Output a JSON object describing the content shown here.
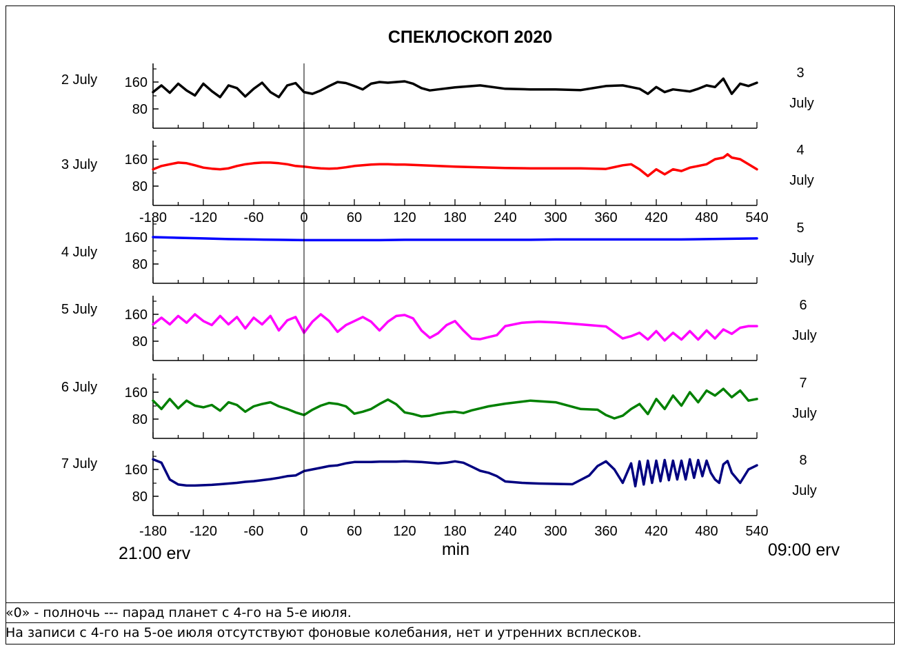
{
  "chart_data": {
    "type": "line",
    "title": "СПЕКЛОСКОП   2020",
    "xlabel": "min",
    "xlim": [
      -180,
      540
    ],
    "x_ticks": [
      "-180",
      "-120",
      "-60",
      "0",
      "60",
      "120",
      "180",
      "240",
      "300",
      "360",
      "420",
      "480",
      "540"
    ],
    "y_ticks": [
      "160",
      "80"
    ],
    "ylim": [
      70,
      200
    ],
    "start_label": "21:00 erv",
    "end_label": "09:00 erv",
    "vertical_marker_x": 0,
    "panels": [
      {
        "label": "2 July",
        "end_day": "3",
        "end_month": "July",
        "color": "#000000",
        "x": [
          -180,
          -170,
          -160,
          -150,
          -140,
          -130,
          -120,
          -110,
          -100,
          -90,
          -80,
          -70,
          -60,
          -50,
          -40,
          -30,
          -20,
          -10,
          0,
          10,
          20,
          30,
          40,
          50,
          60,
          70,
          80,
          90,
          100,
          110,
          120,
          130,
          140,
          150,
          160,
          180,
          210,
          240,
          270,
          300,
          330,
          360,
          380,
          400,
          410,
          420,
          430,
          440,
          450,
          460,
          470,
          480,
          490,
          500,
          510,
          520,
          530,
          540
        ],
        "y": [
          130,
          150,
          128,
          155,
          135,
          120,
          155,
          133,
          115,
          150,
          142,
          117,
          140,
          158,
          130,
          115,
          150,
          157,
          130,
          125,
          135,
          148,
          160,
          157,
          148,
          138,
          155,
          160,
          158,
          160,
          162,
          155,
          142,
          135,
          138,
          144,
          150,
          140,
          138,
          138,
          136,
          148,
          150,
          140,
          125,
          145,
          130,
          138,
          135,
          132,
          140,
          150,
          145,
          170,
          125,
          155,
          148,
          158
        ]
      },
      {
        "label": "3 July",
        "end_day": "4",
        "end_month": "July",
        "color": "#ff0000",
        "x": [
          -180,
          -170,
          -160,
          -150,
          -140,
          -130,
          -120,
          -110,
          -100,
          -90,
          -80,
          -70,
          -60,
          -50,
          -40,
          -30,
          -20,
          -10,
          0,
          10,
          20,
          30,
          40,
          50,
          60,
          70,
          80,
          90,
          100,
          110,
          120,
          130,
          140,
          150,
          160,
          180,
          210,
          240,
          270,
          300,
          330,
          360,
          380,
          390,
          400,
          410,
          420,
          430,
          440,
          450,
          460,
          470,
          480,
          490,
          500,
          505,
          510,
          520,
          530,
          540
        ],
        "y": [
          130,
          140,
          145,
          150,
          148,
          142,
          135,
          132,
          130,
          133,
          140,
          145,
          148,
          150,
          150,
          148,
          145,
          140,
          138,
          135,
          133,
          132,
          133,
          136,
          140,
          142,
          144,
          145,
          145,
          144,
          144,
          143,
          142,
          141,
          140,
          138,
          136,
          134,
          133,
          133,
          133,
          131,
          142,
          145,
          130,
          110,
          130,
          115,
          130,
          125,
          135,
          140,
          145,
          160,
          165,
          175,
          165,
          160,
          145,
          130
        ]
      },
      {
        "label": "4 July",
        "end_day": "5",
        "end_month": "July",
        "color": "#0000ff",
        "x": [
          -180,
          -150,
          -120,
          -90,
          -60,
          -30,
          0,
          30,
          60,
          90,
          120,
          150,
          180,
          210,
          240,
          270,
          300,
          330,
          360,
          390,
          420,
          450,
          480,
          510,
          540
        ],
        "y": [
          160,
          158,
          156,
          154,
          153,
          152,
          151,
          151,
          151,
          151,
          152,
          152,
          152,
          152,
          152,
          152,
          153,
          153,
          153,
          153,
          153,
          153,
          154,
          155,
          156
        ]
      },
      {
        "label": "5 July",
        "end_day": "6",
        "end_month": "July",
        "color": "#ff00ff",
        "x": [
          -180,
          -170,
          -160,
          -150,
          -140,
          -130,
          -120,
          -110,
          -100,
          -90,
          -80,
          -70,
          -60,
          -50,
          -40,
          -30,
          -20,
          -10,
          0,
          10,
          20,
          30,
          40,
          50,
          60,
          70,
          80,
          90,
          100,
          110,
          120,
          130,
          140,
          150,
          160,
          170,
          180,
          190,
          200,
          210,
          220,
          230,
          240,
          260,
          280,
          300,
          320,
          340,
          360,
          380,
          390,
          400,
          410,
          420,
          430,
          440,
          450,
          460,
          470,
          480,
          490,
          500,
          510,
          520,
          530,
          540
        ],
        "y": [
          130,
          150,
          130,
          155,
          135,
          160,
          140,
          128,
          155,
          130,
          152,
          118,
          150,
          130,
          155,
          112,
          142,
          152,
          105,
          138,
          160,
          140,
          108,
          128,
          140,
          152,
          138,
          112,
          138,
          155,
          158,
          148,
          112,
          90,
          104,
          128,
          140,
          112,
          88,
          86,
          92,
          98,
          125,
          135,
          138,
          136,
          132,
          128,
          124,
          88,
          95,
          105,
          85,
          110,
          82,
          105,
          85,
          110,
          85,
          112,
          88,
          115,
          102,
          120,
          125,
          125
        ]
      },
      {
        "label": "6 July",
        "end_day": "7",
        "end_month": "July",
        "color": "#008000",
        "x": [
          -180,
          -170,
          -160,
          -150,
          -140,
          -130,
          -120,
          -110,
          -100,
          -90,
          -80,
          -70,
          -60,
          -50,
          -40,
          -30,
          -20,
          -10,
          0,
          10,
          20,
          30,
          40,
          50,
          60,
          70,
          80,
          90,
          100,
          110,
          120,
          130,
          140,
          150,
          160,
          170,
          180,
          190,
          200,
          210,
          220,
          240,
          270,
          300,
          330,
          350,
          360,
          370,
          380,
          390,
          400,
          410,
          420,
          430,
          440,
          450,
          460,
          470,
          480,
          490,
          500,
          510,
          520,
          530,
          540
        ],
        "y": [
          135,
          110,
          140,
          112,
          135,
          120,
          115,
          122,
          105,
          130,
          122,
          102,
          118,
          125,
          130,
          118,
          110,
          100,
          92,
          108,
          120,
          128,
          125,
          118,
          96,
          102,
          110,
          125,
          138,
          124,
          100,
          95,
          88,
          90,
          96,
          100,
          102,
          98,
          106,
          112,
          118,
          126,
          135,
          130,
          110,
          108,
          92,
          82,
          90,
          110,
          125,
          95,
          140,
          110,
          150,
          120,
          160,
          130,
          165,
          150,
          170,
          145,
          165,
          135,
          140
        ]
      },
      {
        "label": "7 July",
        "end_day": "8",
        "end_month": "July",
        "color": "#000080",
        "x": [
          -180,
          -170,
          -160,
          -150,
          -140,
          -130,
          -120,
          -110,
          -100,
          -90,
          -80,
          -70,
          -60,
          -50,
          -40,
          -30,
          -20,
          -10,
          0,
          10,
          20,
          30,
          40,
          50,
          60,
          70,
          80,
          90,
          100,
          110,
          120,
          130,
          140,
          150,
          160,
          170,
          180,
          190,
          200,
          210,
          220,
          230,
          240,
          250,
          260,
          280,
          300,
          320,
          340,
          350,
          360,
          370,
          380,
          390,
          395,
          400,
          405,
          410,
          415,
          420,
          425,
          430,
          435,
          440,
          445,
          450,
          455,
          460,
          465,
          470,
          475,
          480,
          485,
          490,
          495,
          500,
          505,
          510,
          520,
          530,
          540
        ],
        "y": [
          190,
          180,
          130,
          115,
          112,
          112,
          113,
          114,
          116,
          118,
          120,
          123,
          125,
          128,
          131,
          135,
          140,
          142,
          155,
          160,
          165,
          170,
          172,
          178,
          182,
          182,
          182,
          183,
          183,
          183,
          184,
          183,
          182,
          180,
          178,
          180,
          184,
          180,
          168,
          156,
          150,
          140,
          124,
          122,
          120,
          118,
          117,
          116,
          142,
          170,
          184,
          160,
          120,
          178,
          110,
          184,
          115,
          186,
          120,
          186,
          125,
          188,
          128,
          186,
          130,
          186,
          130,
          190,
          135,
          188,
          140,
          186,
          150,
          130,
          120,
          175,
          185,
          150,
          120,
          160,
          172
        ]
      }
    ]
  },
  "notes": {
    "line1": "«0» - полночь --- парад планет с 4-го на 5-е июля.",
    "line2": "На записи с 4-го на 5-ое июля отсутствуют фоновые колебания, нет и утренних всплесков."
  }
}
